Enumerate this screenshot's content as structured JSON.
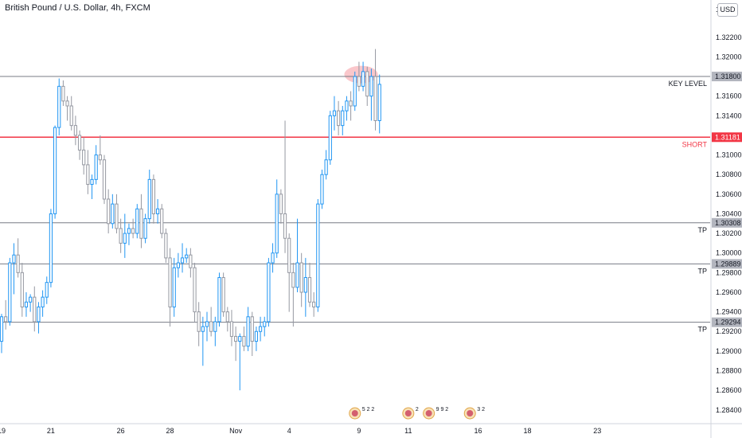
{
  "title": "British Pound / U.S. Dollar, 4h, FXCM",
  "currency": "USD",
  "chart_data": {
    "type": "candlestick",
    "ylim": [
      1.2826,
      1.3258
    ],
    "y_ticks": [
      "1.32200",
      "1.32000",
      "1.31600",
      "1.31400",
      "1.31000",
      "1.30800",
      "1.30600",
      "1.30400",
      "1.30200",
      "1.30000",
      "1.29800",
      "1.29600",
      "1.29400",
      "1.29200",
      "1.29000",
      "1.28800",
      "1.28600",
      "1.28400"
    ],
    "y_tick_values": [
      1.322,
      1.32,
      1.316,
      1.314,
      1.31,
      1.308,
      1.306,
      1.304,
      1.302,
      1.3,
      1.298,
      1.296,
      1.294,
      1.292,
      1.29,
      1.288,
      1.286,
      1.284
    ],
    "top_tick": "1.3",
    "x_ticks": [
      {
        "label": "19",
        "index": 0
      },
      {
        "label": "21",
        "index": 12
      },
      {
        "label": "26",
        "index": 29
      },
      {
        "label": "28",
        "index": 41
      },
      {
        "label": "Nov",
        "index": 57
      },
      {
        "label": "4",
        "index": 70
      },
      {
        "label": "9",
        "index": 87
      },
      {
        "label": "11",
        "index": 99
      },
      {
        "label": "16",
        "index": 116
      },
      {
        "label": "18",
        "index": 128
      },
      {
        "label": "23",
        "index": 145
      }
    ],
    "levels": [
      {
        "value": 1.318,
        "price_label": "1.31800",
        "name": "KEY LEVEL",
        "color": "#787b86"
      },
      {
        "value": 1.31181,
        "price_label": "1.31181",
        "name": "SHORT",
        "color": "#f23645"
      },
      {
        "value": 1.30308,
        "price_label": "1.30308",
        "name": "TP",
        "color": "#787b86"
      },
      {
        "value": 1.29889,
        "price_label": "1.29889",
        "name": "TP",
        "color": "#787b86"
      },
      {
        "value": 1.29294,
        "price_label": "1.29294",
        "name": "TP",
        "color": "#787b86"
      }
    ],
    "highlight": {
      "index_start": 84,
      "index_end": 91,
      "value": 1.3182,
      "color": "#f7a1a8"
    },
    "candles": [
      [
        1.291,
        1.2938,
        1.2898,
        1.2935
      ],
      [
        1.2935,
        1.2952,
        1.2922,
        1.293
      ],
      [
        1.293,
        1.2995,
        1.2926,
        1.299
      ],
      [
        1.299,
        1.301,
        1.2958,
        1.2998
      ],
      [
        1.2998,
        1.3015,
        1.2975,
        1.298
      ],
      [
        1.298,
        1.299,
        1.2935,
        1.2945
      ],
      [
        1.2945,
        1.296,
        1.2935,
        1.295
      ],
      [
        1.295,
        1.2958,
        1.294,
        1.2955
      ],
      [
        1.2955,
        1.2966,
        1.292,
        1.293
      ],
      [
        1.293,
        1.295,
        1.2918,
        1.2945
      ],
      [
        1.2945,
        1.2962,
        1.2935,
        1.2955
      ],
      [
        1.2955,
        1.2976,
        1.2948,
        1.297
      ],
      [
        1.297,
        1.3045,
        1.2965,
        1.304
      ],
      [
        1.304,
        1.313,
        1.3035,
        1.3128
      ],
      [
        1.3128,
        1.3178,
        1.312,
        1.317
      ],
      [
        1.317,
        1.3176,
        1.315,
        1.3155
      ],
      [
        1.3155,
        1.316,
        1.3135,
        1.315
      ],
      [
        1.315,
        1.316,
        1.3125,
        1.313
      ],
      [
        1.313,
        1.314,
        1.311,
        1.312
      ],
      [
        1.312,
        1.3125,
        1.3095,
        1.3105
      ],
      [
        1.3105,
        1.3118,
        1.308,
        1.309
      ],
      [
        1.309,
        1.3105,
        1.306,
        1.307
      ],
      [
        1.307,
        1.308,
        1.3055,
        1.3075
      ],
      [
        1.3075,
        1.311,
        1.307,
        1.31
      ],
      [
        1.31,
        1.312,
        1.309,
        1.3095
      ],
      [
        1.3095,
        1.31,
        1.305,
        1.3055
      ],
      [
        1.3055,
        1.3065,
        1.302,
        1.303
      ],
      [
        1.303,
        1.306,
        1.3025,
        1.305
      ],
      [
        1.305,
        1.306,
        1.302,
        1.3025
      ],
      [
        1.3025,
        1.3035,
        1.3,
        1.301
      ],
      [
        1.301,
        1.304,
        1.2995,
        1.302
      ],
      [
        1.302,
        1.303,
        1.3008,
        1.3025
      ],
      [
        1.3025,
        1.3035,
        1.3015,
        1.302
      ],
      [
        1.302,
        1.305,
        1.3015,
        1.3045
      ],
      [
        1.3045,
        1.306,
        1.3005,
        1.3015
      ],
      [
        1.3015,
        1.304,
        1.301,
        1.3035
      ],
      [
        1.3035,
        1.3085,
        1.303,
        1.3075
      ],
      [
        1.3075,
        1.308,
        1.303,
        1.304
      ],
      [
        1.304,
        1.3055,
        1.303,
        1.3045
      ],
      [
        1.3045,
        1.305,
        1.3015,
        1.302
      ],
      [
        1.302,
        1.3025,
        1.299,
        1.2995
      ],
      [
        1.2995,
        1.3005,
        1.2925,
        1.2945
      ],
      [
        1.2945,
        1.2995,
        1.2935,
        1.2985
      ],
      [
        1.2985,
        1.3,
        1.2975,
        1.299
      ],
      [
        1.299,
        1.301,
        1.298,
        1.2995
      ],
      [
        1.2995,
        1.3005,
        1.299,
        1.2998
      ],
      [
        1.2998,
        1.3005,
        1.2975,
        1.2985
      ],
      [
        1.2985,
        1.299,
        1.293,
        1.294
      ],
      [
        1.294,
        1.295,
        1.2905,
        1.292
      ],
      [
        1.292,
        1.2935,
        1.2885,
        1.2925
      ],
      [
        1.2925,
        1.294,
        1.291,
        1.293
      ],
      [
        1.293,
        1.2945,
        1.2915,
        1.292
      ],
      [
        1.292,
        1.2935,
        1.2905,
        1.293
      ],
      [
        1.293,
        1.298,
        1.2925,
        1.2975
      ],
      [
        1.2975,
        1.298,
        1.2935,
        1.294
      ],
      [
        1.294,
        1.2945,
        1.292,
        1.293
      ],
      [
        1.293,
        1.2942,
        1.2905,
        1.2915
      ],
      [
        1.2915,
        1.2925,
        1.289,
        1.291
      ],
      [
        1.291,
        1.2918,
        1.286,
        1.2915
      ],
      [
        1.2915,
        1.2925,
        1.29,
        1.2905
      ],
      [
        1.2905,
        1.2945,
        1.29,
        1.2935
      ],
      [
        1.2935,
        1.294,
        1.2895,
        1.291
      ],
      [
        1.291,
        1.2925,
        1.29,
        1.292
      ],
      [
        1.292,
        1.2935,
        1.291,
        1.2925
      ],
      [
        1.2925,
        1.2935,
        1.2915,
        1.293
      ],
      [
        1.293,
        1.2995,
        1.2925,
        1.299
      ],
      [
        1.299,
        1.301,
        1.298,
        1.3
      ],
      [
        1.3,
        1.3075,
        1.2995,
        1.306
      ],
      [
        1.306,
        1.3065,
        1.303,
        1.304
      ],
      [
        1.304,
        1.3135,
        1.3,
        1.3015
      ],
      [
        1.3015,
        1.302,
        1.294,
        1.298
      ],
      [
        1.298,
        1.299,
        1.2925,
        1.2965
      ],
      [
        1.2965,
        1.3035,
        1.296,
        1.299
      ],
      [
        1.299,
        1.3,
        1.2945,
        1.296
      ],
      [
        1.296,
        1.2995,
        1.2935,
        1.2975
      ],
      [
        1.2975,
        1.299,
        1.2945,
        1.295
      ],
      [
        1.295,
        1.296,
        1.2935,
        1.2945
      ],
      [
        1.2945,
        1.3055,
        1.294,
        1.305
      ],
      [
        1.305,
        1.3085,
        1.3045,
        1.308
      ],
      [
        1.308,
        1.3105,
        1.3075,
        1.3095
      ],
      [
        1.3095,
        1.3145,
        1.309,
        1.314
      ],
      [
        1.314,
        1.316,
        1.3125,
        1.3145
      ],
      [
        1.3145,
        1.3155,
        1.312,
        1.313
      ],
      [
        1.313,
        1.315,
        1.312,
        1.3145
      ],
      [
        1.3145,
        1.316,
        1.3135,
        1.3155
      ],
      [
        1.3155,
        1.3165,
        1.3135,
        1.315
      ],
      [
        1.315,
        1.3185,
        1.3145,
        1.318
      ],
      [
        1.318,
        1.3195,
        1.3165,
        1.317
      ],
      [
        1.317,
        1.3195,
        1.3165,
        1.3185
      ],
      [
        1.3185,
        1.319,
        1.315,
        1.316
      ],
      [
        1.316,
        1.3188,
        1.3135,
        1.318
      ],
      [
        1.318,
        1.3208,
        1.3125,
        1.3135
      ],
      [
        1.3135,
        1.3182,
        1.3122,
        1.3172
      ]
    ],
    "events": [
      {
        "index": 86,
        "label": "5 2 2"
      },
      {
        "index": 99,
        "label": "2"
      },
      {
        "index": 104,
        "label": "9 9 2"
      },
      {
        "index": 114,
        "label": "3 2"
      }
    ]
  }
}
